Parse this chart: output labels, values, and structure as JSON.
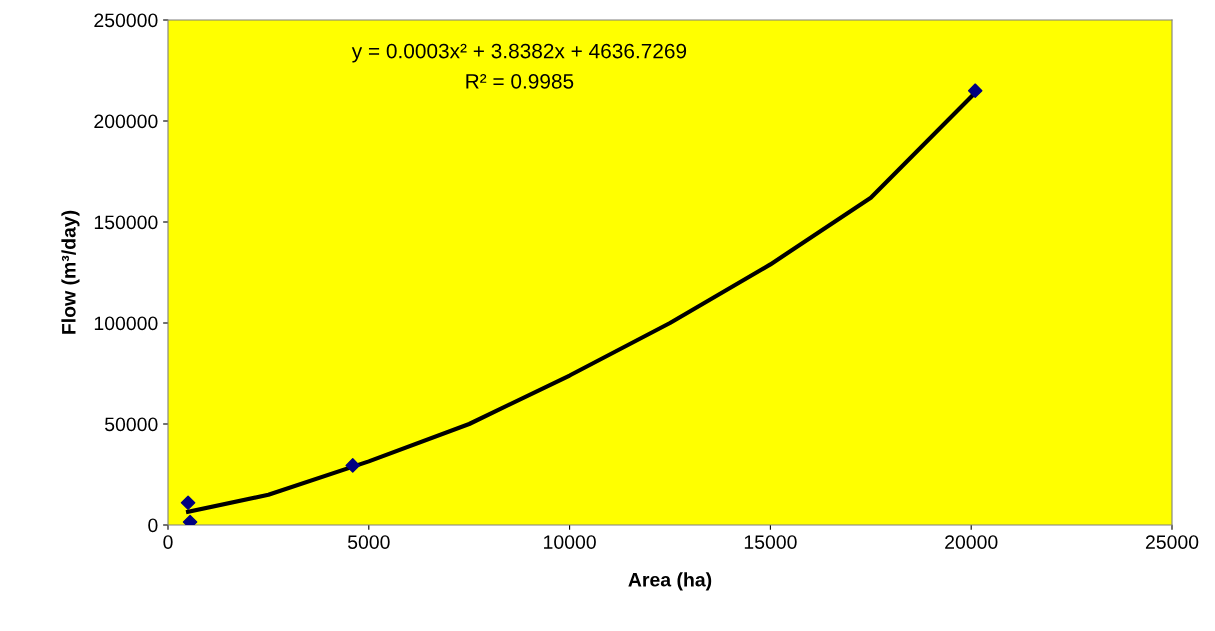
{
  "chart_data": {
    "type": "scatter",
    "xlabel": "Area (ha)",
    "ylabel": "Flow (m³/day)",
    "annotations": [
      "y = 0.0003x² + 3.8382x + 4636.7269",
      "R² = 0.9985"
    ],
    "series": [
      {
        "color": "#000080",
        "marker": "diamond",
        "x": [
          500,
          550,
          4600,
          20100
        ],
        "values": [
          11000,
          1500,
          29500,
          215000
        ]
      },
      {
        "type": "line",
        "color": "#000000",
        "marker": "none",
        "line_style": "solid",
        "x": [
          500,
          2500,
          5000,
          7500,
          10000,
          12500,
          15000,
          17500,
          20100
        ],
        "values": [
          6500,
          15000,
          31500,
          50000,
          74000,
          100000,
          129000,
          162000,
          214000
        ]
      }
    ],
    "xlim": [
      0,
      25000
    ],
    "xticks": [
      0,
      5000,
      10000,
      15000,
      20000,
      25000
    ],
    "ylim": [
      0,
      250000
    ],
    "yticks": [
      0,
      50000,
      100000,
      150000,
      200000,
      250000
    ],
    "grid": false,
    "legend": false
  }
}
